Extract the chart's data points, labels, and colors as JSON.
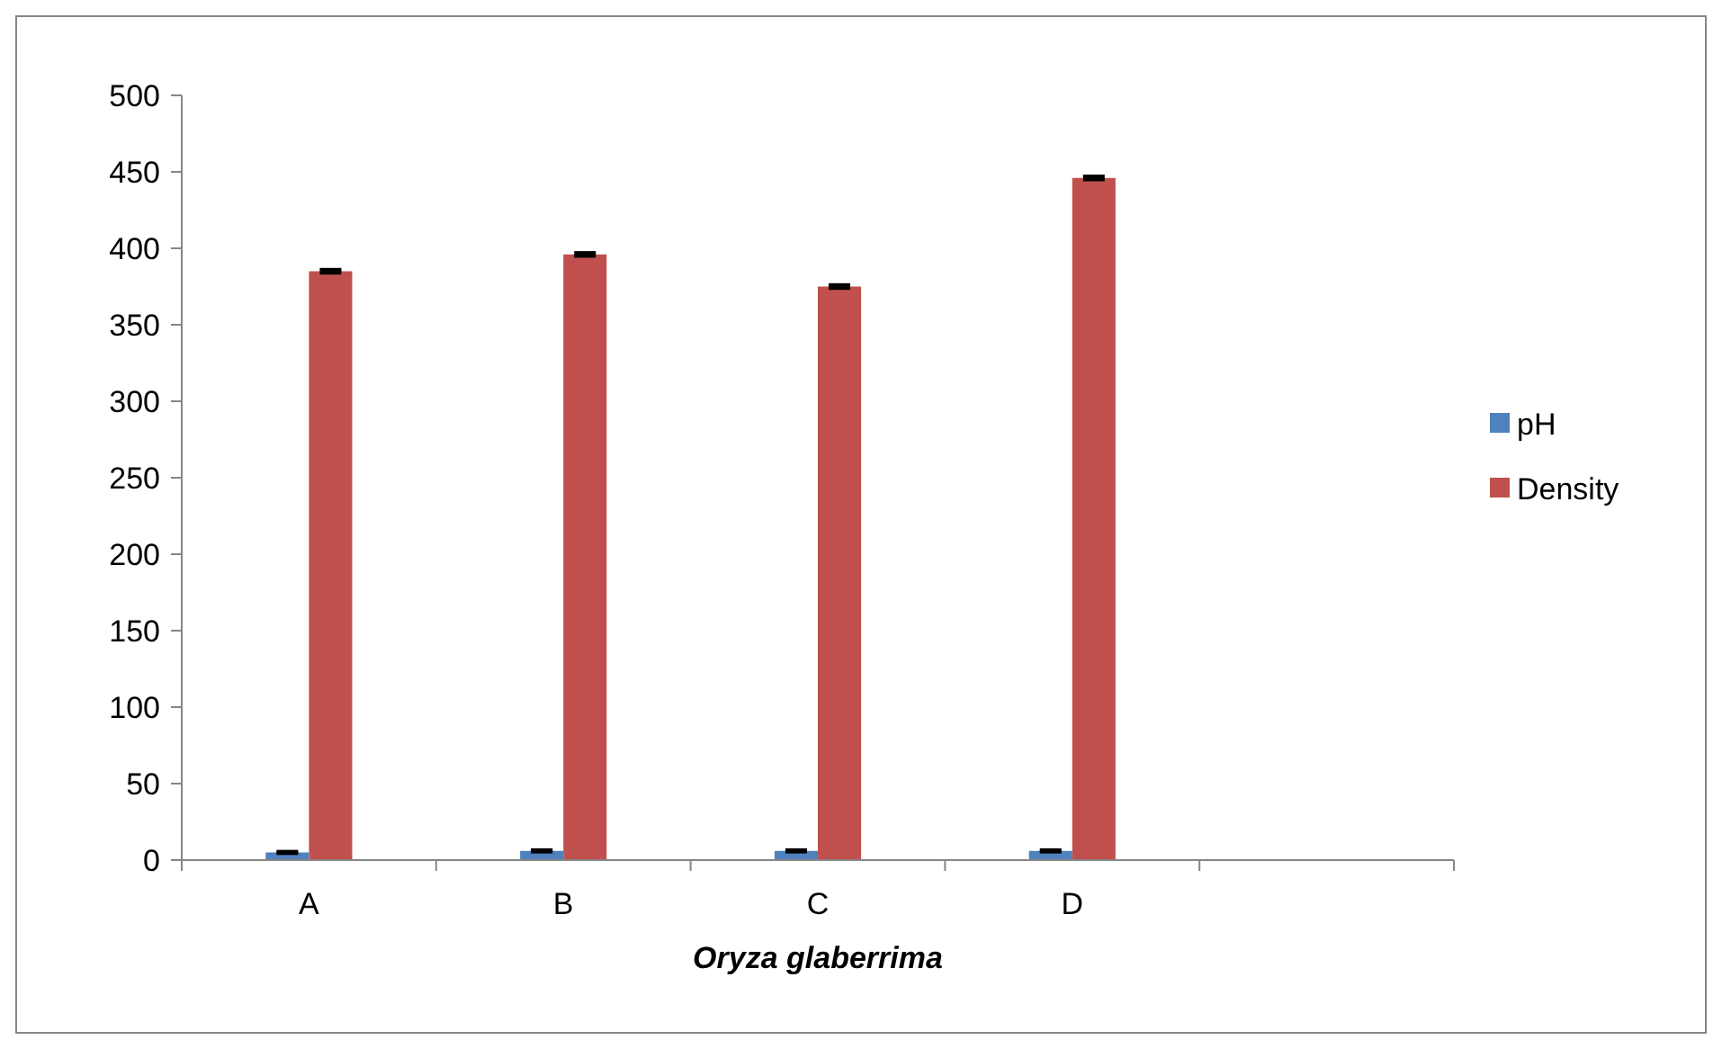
{
  "chart_data": {
    "type": "bar",
    "xlabel": "Oryza glaberrima",
    "categories": [
      "A",
      "B",
      "C",
      "D",
      null
    ],
    "series": [
      {
        "name": "pH",
        "color": "#4f81bd",
        "values": [
          5,
          6,
          6,
          6,
          null
        ],
        "errors": [
          0.5,
          0.5,
          0.5,
          0.5,
          null
        ]
      },
      {
        "name": "Density",
        "color": "#c0504d",
        "values": [
          385,
          396,
          375,
          446,
          null
        ],
        "errors": [
          1,
          1,
          1,
          1,
          null
        ]
      }
    ],
    "ylim": [
      0,
      500
    ],
    "yticks": [
      0,
      50,
      100,
      150,
      200,
      250,
      300,
      350,
      400,
      450,
      500
    ],
    "grid": false,
    "legend": "right"
  }
}
